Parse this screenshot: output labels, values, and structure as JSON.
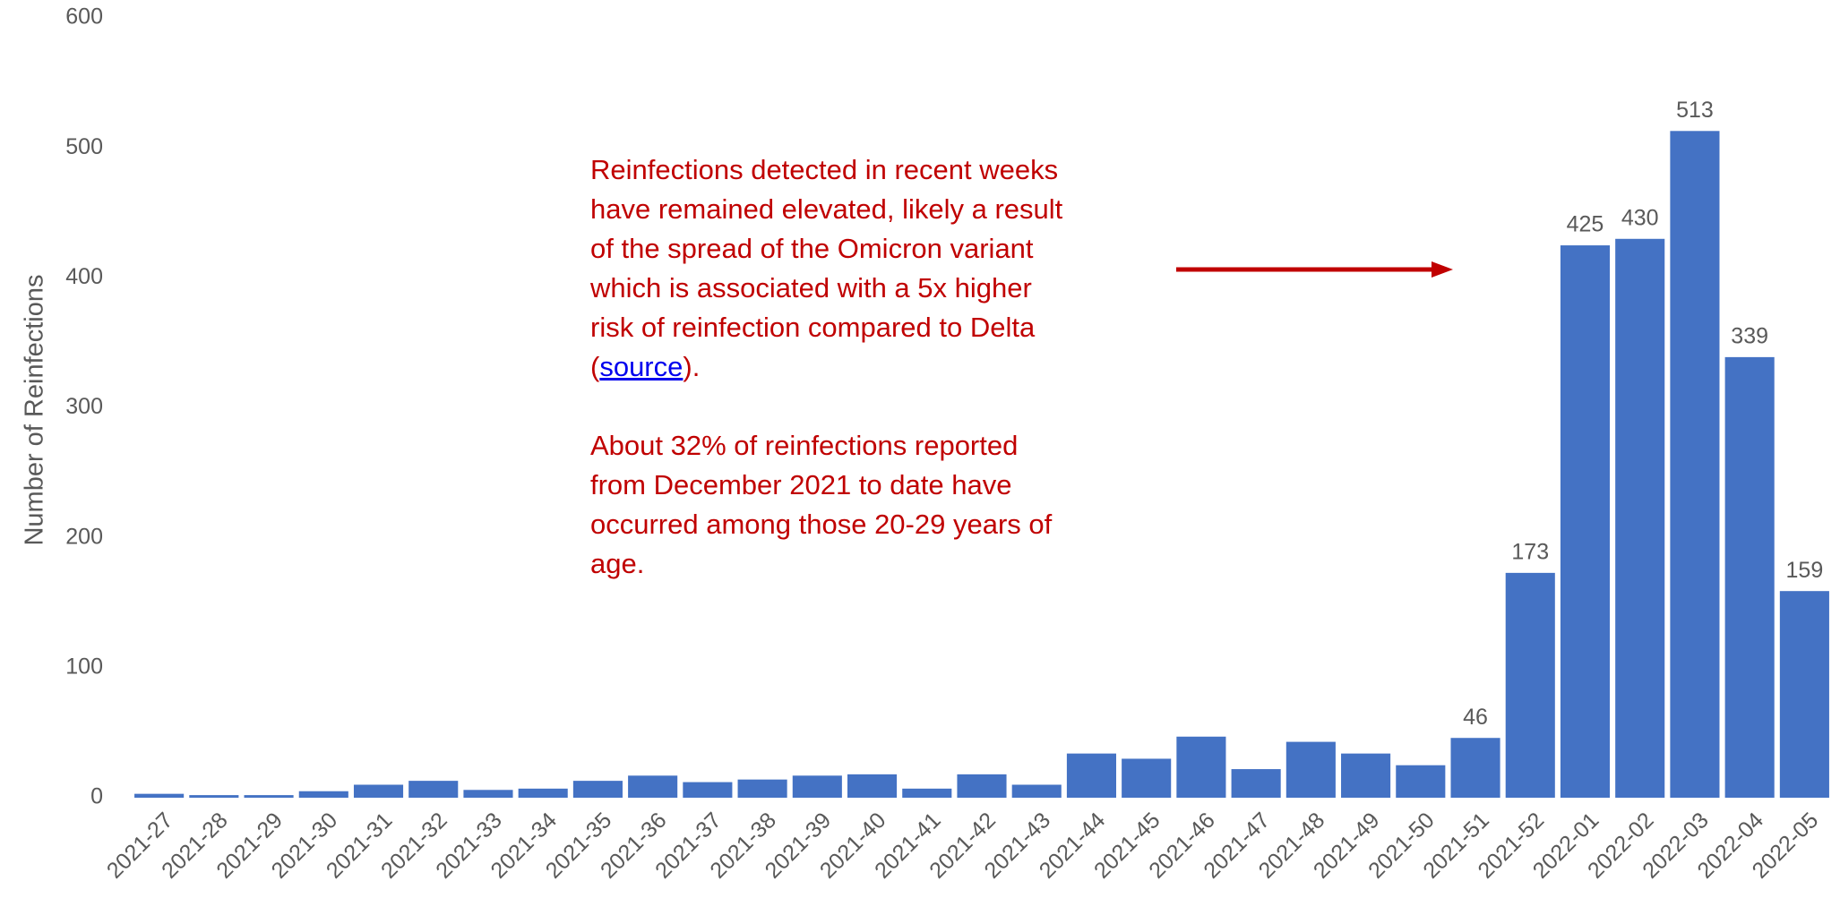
{
  "chart_data": {
    "type": "bar",
    "ylabel": "Number of Reinfections",
    "categories": [
      "2021-27",
      "2021-28",
      "2021-29",
      "2021-30",
      "2021-31",
      "2021-32",
      "2021-33",
      "2021-34",
      "2021-35",
      "2021-36",
      "2021-37",
      "2021-38",
      "2021-39",
      "2021-40",
      "2021-41",
      "2021-42",
      "2021-43",
      "2021-44",
      "2021-45",
      "2021-46",
      "2021-47",
      "2021-48",
      "2021-49",
      "2021-50",
      "2021-51",
      "2021-52",
      "2022-01",
      "2022-02",
      "2022-03",
      "2022-04",
      "2022-05"
    ],
    "values": [
      3,
      2,
      2,
      5,
      10,
      13,
      6,
      7,
      13,
      17,
      12,
      14,
      17,
      18,
      7,
      18,
      10,
      34,
      30,
      47,
      22,
      43,
      34,
      25,
      46,
      173,
      425,
      430,
      513,
      339,
      159
    ],
    "value_labels": [
      null,
      null,
      null,
      null,
      null,
      null,
      null,
      null,
      null,
      null,
      null,
      null,
      null,
      null,
      null,
      null,
      null,
      null,
      null,
      null,
      null,
      null,
      null,
      null,
      "46",
      "173",
      "425",
      "430",
      "513",
      "339",
      "159"
    ],
    "color": "#4472c4",
    "ylim": [
      0,
      600
    ],
    "yticks": [
      0,
      100,
      200,
      300,
      400,
      500,
      600
    ],
    "grid": false,
    "annotation": {
      "lines1": [
        "Reinfections detected in recent weeks",
        "have remained elevated, likely a result",
        "of the spread of the Omicron variant",
        "which is associated with a 5x higher",
        "risk of reinfection compared to Delta"
      ],
      "open": "(",
      "link": "source",
      "close": ").",
      "lines2": [
        "About 32% of reinfections reported",
        "from December 2021 to date have",
        "occurred among those 20-29 years of",
        "age."
      ],
      "color": "#c00000"
    }
  }
}
